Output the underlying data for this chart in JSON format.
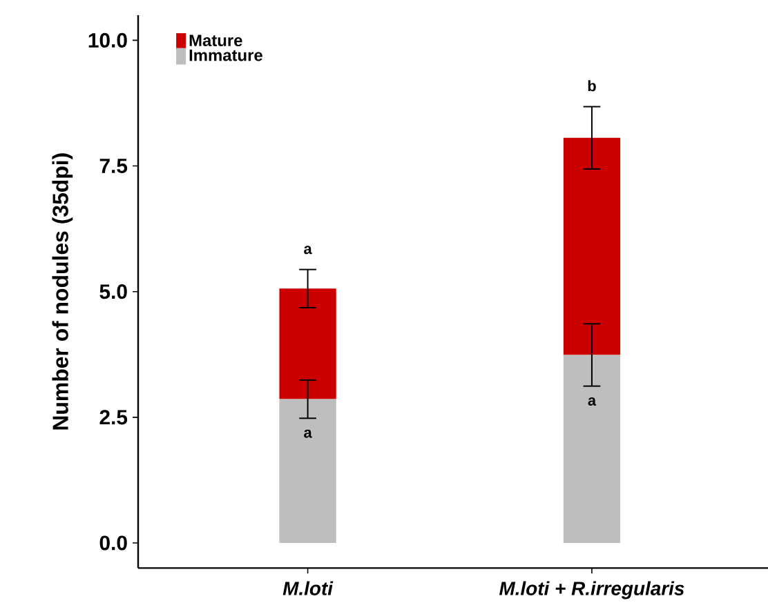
{
  "chart_data": {
    "type": "bar",
    "stacked": true,
    "ylabel": "Number of nodules (35dpi)",
    "categories": [
      "M.loti",
      "M.loti + R.irregularis"
    ],
    "series": [
      {
        "name": "Immature",
        "color": "#bebebe",
        "values": [
          2.86,
          3.74
        ],
        "errors": [
          0.38,
          0.62
        ],
        "value_labels": [
          "a",
          "a"
        ]
      },
      {
        "name": "Mature",
        "color": "#cc0000",
        "values": [
          2.2,
          4.32
        ],
        "errors": [
          0.38,
          0.62
        ],
        "value_labels": [
          "a",
          "b"
        ]
      }
    ],
    "ylim": [
      -0.5,
      10.5
    ],
    "yticks": [
      {
        "value": 0,
        "label": "0.0"
      },
      {
        "value": 2.5,
        "label": "2.5"
      },
      {
        "value": 5,
        "label": "5.0"
      },
      {
        "value": 7.5,
        "label": "7.5"
      },
      {
        "value": 10,
        "label": "10.0"
      }
    ],
    "legend": "top left",
    "grid": false
  }
}
